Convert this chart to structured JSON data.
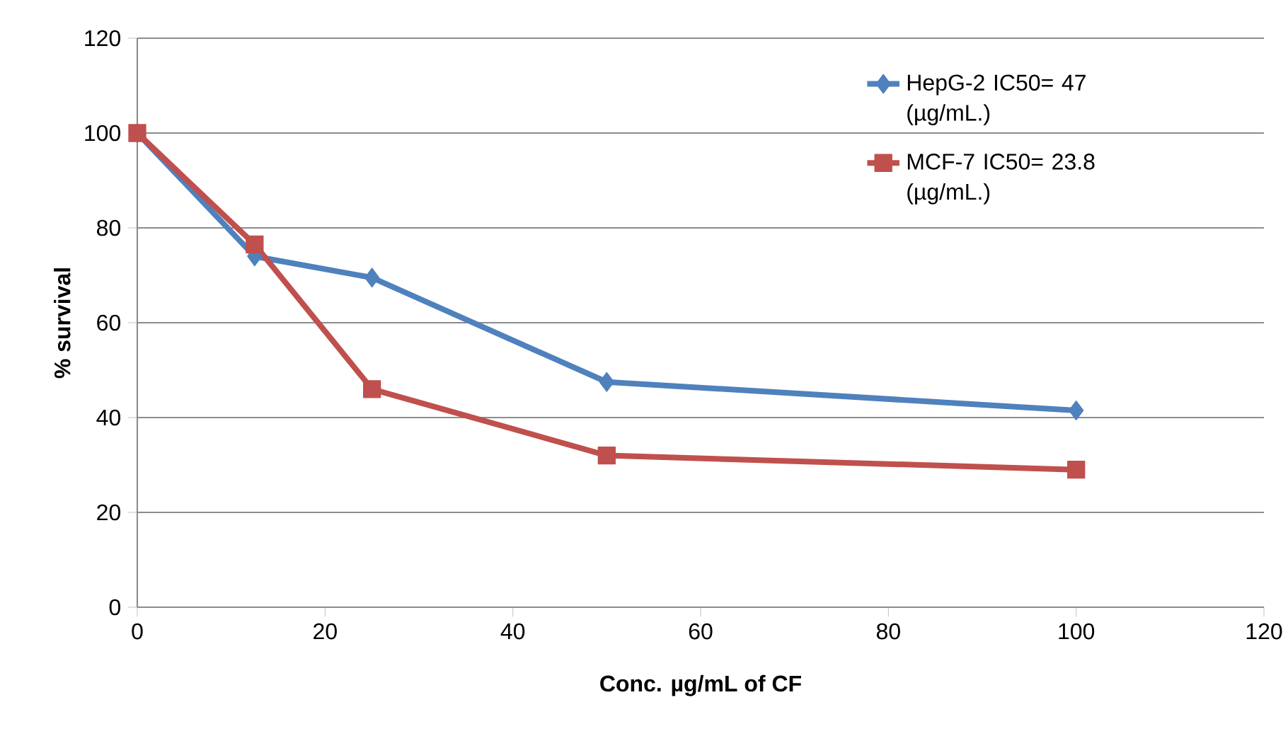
{
  "chart_data": {
    "type": "line",
    "xlabel": "Conc. µg/mL of CF",
    "ylabel": "% survival",
    "x": [
      0,
      12.5,
      25,
      50,
      100
    ],
    "series": [
      {
        "name": "HepG-2 IC50= 47 (µg/mL.)",
        "color": "#4f81bd",
        "marker": "diamond",
        "values": [
          100,
          74,
          69.5,
          47.5,
          41.5
        ]
      },
      {
        "name": "MCF-7  IC50= 23.8 (µg/mL.)",
        "color": "#c0504d",
        "marker": "square",
        "values": [
          100,
          76.5,
          46,
          32,
          29
        ]
      }
    ],
    "xlim": [
      0,
      120
    ],
    "xticks": [
      0,
      20,
      40,
      60,
      80,
      100,
      120
    ],
    "ylim": [
      0,
      120
    ],
    "yticks": [
      0,
      20,
      40,
      60,
      80,
      100,
      120
    ],
    "grid": "y",
    "legend": "top right"
  }
}
